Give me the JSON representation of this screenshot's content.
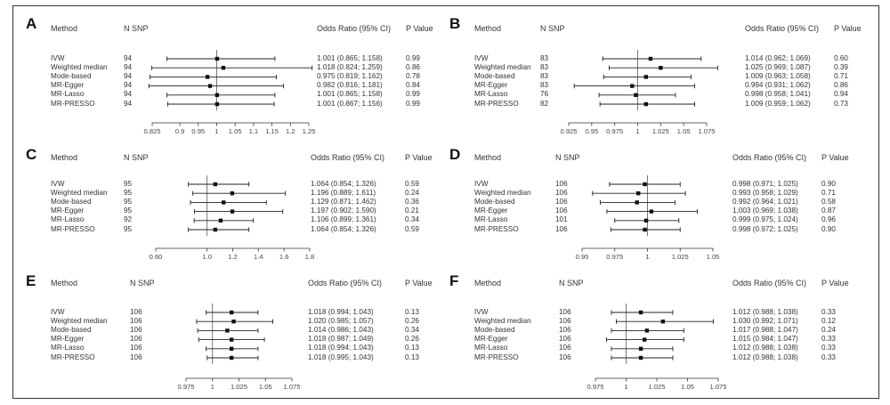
{
  "chart_data": [
    {
      "type": "forest",
      "panel": "A",
      "headers": {
        "method": "Method",
        "nsnp": "N SNP",
        "or": "Odds Ratio (95% CI)",
        "p": "P Value"
      },
      "rows": [
        {
          "method": "IVW",
          "nsnp": "94",
          "or_text": "1.001 (0.865; 1.158)",
          "p": "0.99",
          "or": 1.001,
          "lo": 0.865,
          "hi": 1.158
        },
        {
          "method": "Weighted median",
          "nsnp": "94",
          "or_text": "1.018 (0.824; 1.259)",
          "p": "0.86",
          "or": 1.018,
          "lo": 0.824,
          "hi": 1.259
        },
        {
          "method": "Mode-based",
          "nsnp": "94",
          "or_text": "0.975 (0.819; 1.162)",
          "p": "0.78",
          "or": 0.975,
          "lo": 0.819,
          "hi": 1.162
        },
        {
          "method": "MR-Egger",
          "nsnp": "94",
          "or_text": "0.982 (0.816; 1.181)",
          "p": "0.84",
          "or": 0.982,
          "lo": 0.816,
          "hi": 1.181
        },
        {
          "method": "MR-Lasso",
          "nsnp": "94",
          "or_text": "1.001 (0.865; 1.158)",
          "p": "0.99",
          "or": 1.001,
          "lo": 0.865,
          "hi": 1.158
        },
        {
          "method": "MR-PRESSO",
          "nsnp": "94",
          "or_text": "1.001 (0.867; 1.156)",
          "p": "0.99",
          "or": 1.001,
          "lo": 0.867,
          "hi": 1.156
        }
      ],
      "axis": {
        "min": 0.825,
        "max": 1.25,
        "ticks": [
          0.825,
          0.9,
          0.95,
          1,
          1.05,
          1.1,
          1.15,
          1.2,
          1.25
        ],
        "tick_labels": [
          "0.825",
          "0.9",
          "0.95",
          "1",
          "1.05",
          "1.1",
          "1.15",
          "1.2",
          "1.25"
        ]
      }
    },
    {
      "type": "forest",
      "panel": "B",
      "headers": {
        "method": "Method",
        "nsnp": "N SNP",
        "or": "Odds Ratio (95% CI)",
        "p": "P Value"
      },
      "rows": [
        {
          "method": "IVW",
          "nsnp": "83",
          "or_text": "1.014 (0.962; 1.069)",
          "p": "0.60",
          "or": 1.014,
          "lo": 0.962,
          "hi": 1.069
        },
        {
          "method": "Weighted median",
          "nsnp": "83",
          "or_text": "1.025 (0.969; 1.087)",
          "p": "0.39",
          "or": 1.025,
          "lo": 0.969,
          "hi": 1.087
        },
        {
          "method": "Mode-based",
          "nsnp": "83",
          "or_text": "1.009 (0.963; 1.058)",
          "p": "0.71",
          "or": 1.009,
          "lo": 0.963,
          "hi": 1.058
        },
        {
          "method": "MR-Egger",
          "nsnp": "83",
          "or_text": "0.994 (0.931; 1.062)",
          "p": "0.86",
          "or": 0.994,
          "lo": 0.931,
          "hi": 1.062
        },
        {
          "method": "MR-Lasso",
          "nsnp": "76",
          "or_text": "0.998 (0.958; 1.041)",
          "p": "0.94",
          "or": 0.998,
          "lo": 0.958,
          "hi": 1.041
        },
        {
          "method": "MR-PRESSO",
          "nsnp": "82",
          "or_text": "1.009 (0.959; 1.062)",
          "p": "0.73",
          "or": 1.009,
          "lo": 0.959,
          "hi": 1.062
        }
      ],
      "axis": {
        "min": 0.925,
        "max": 1.075,
        "ticks": [
          0.925,
          0.95,
          0.975,
          1,
          1.025,
          1.05,
          1.075
        ],
        "tick_labels": [
          "0.925",
          "0.95",
          "0.975",
          "1",
          "1.025",
          "1.05",
          "1.075"
        ]
      }
    },
    {
      "type": "forest",
      "panel": "C",
      "headers": {
        "method": "Method",
        "nsnp": "N SNP",
        "or": "Odds Ratio (95% CI)",
        "p": "P Value"
      },
      "rows": [
        {
          "method": "IVW",
          "nsnp": "95",
          "or_text": "1.064 (0.854; 1.326)",
          "p": "0.59",
          "or": 1.064,
          "lo": 0.854,
          "hi": 1.326
        },
        {
          "method": "Weighted median",
          "nsnp": "95",
          "or_text": "1.196 (0.889; 1.611)",
          "p": "0.24",
          "or": 1.196,
          "lo": 0.889,
          "hi": 1.611
        },
        {
          "method": "Mode-based",
          "nsnp": "95",
          "or_text": "1.129 (0.871; 1.462)",
          "p": "0.36",
          "or": 1.129,
          "lo": 0.871,
          "hi": 1.462
        },
        {
          "method": "MR-Egger",
          "nsnp": "95",
          "or_text": "1.197 (0.902; 1.590)",
          "p": "0.21",
          "or": 1.197,
          "lo": 0.902,
          "hi": 1.59
        },
        {
          "method": "MR-Lasso",
          "nsnp": "92",
          "or_text": "1.106 (0.899; 1.361)",
          "p": "0.34",
          "or": 1.106,
          "lo": 0.899,
          "hi": 1.361
        },
        {
          "method": "MR-PRESSO",
          "nsnp": "95",
          "or_text": "1.064 (0.854; 1.326)",
          "p": "0.59",
          "or": 1.064,
          "lo": 0.854,
          "hi": 1.326
        }
      ],
      "axis": {
        "min": 0.6,
        "max": 1.8,
        "ticks": [
          0.6,
          1.0,
          1.2,
          1.4,
          1.6,
          1.8
        ],
        "tick_labels": [
          "0.60",
          "1.0",
          "1.2",
          "1.4",
          "1.6",
          "1.8"
        ]
      }
    },
    {
      "type": "forest",
      "panel": "D",
      "headers": {
        "method": "Method",
        "nsnp": "N SNP",
        "or": "Odds Ratio (95% CI)",
        "p": "P Value"
      },
      "rows": [
        {
          "method": "IVW",
          "nsnp": "106",
          "or_text": "0.998 (0.971; 1.025)",
          "p": "0.90",
          "or": 0.998,
          "lo": 0.971,
          "hi": 1.025
        },
        {
          "method": "Weighted median",
          "nsnp": "106",
          "or_text": "0.993 (0.958; 1.029)",
          "p": "0.71",
          "or": 0.993,
          "lo": 0.958,
          "hi": 1.029
        },
        {
          "method": "Mode-based",
          "nsnp": "106",
          "or_text": "0.992 (0.964; 1.021)",
          "p": "0.58",
          "or": 0.992,
          "lo": 0.964,
          "hi": 1.021
        },
        {
          "method": "MR-Egger",
          "nsnp": "106",
          "or_text": "1.003 (0.969; 1.038)",
          "p": "0.87",
          "or": 1.003,
          "lo": 0.969,
          "hi": 1.038
        },
        {
          "method": "MR-Lasso",
          "nsnp": "101",
          "or_text": "0.999 (0.975; 1.024)",
          "p": "0.96",
          "or": 0.999,
          "lo": 0.975,
          "hi": 1.024
        },
        {
          "method": "MR-PRESSO",
          "nsnp": "106",
          "or_text": "0.998 (0.972; 1.025)",
          "p": "0.90",
          "or": 0.998,
          "lo": 0.972,
          "hi": 1.025
        }
      ],
      "axis": {
        "min": 0.95,
        "max": 1.05,
        "ticks": [
          0.95,
          0.975,
          1,
          1.025,
          1.05
        ],
        "tick_labels": [
          "0.95",
          "0.975",
          "1",
          "1.025",
          "1.05"
        ]
      }
    },
    {
      "type": "forest",
      "panel": "E",
      "headers": {
        "method": "Method",
        "nsnp": "N SNP",
        "or": "Odds Ratio (95% CI)",
        "p": "P Value"
      },
      "rows": [
        {
          "method": "IVW",
          "nsnp": "106",
          "or_text": "1.018 (0.994; 1.043)",
          "p": "0.13",
          "or": 1.018,
          "lo": 0.994,
          "hi": 1.043
        },
        {
          "method": "Weighted median",
          "nsnp": "106",
          "or_text": "1.020 (0.985; 1.057)",
          "p": "0.26",
          "or": 1.02,
          "lo": 0.985,
          "hi": 1.057
        },
        {
          "method": "Mode-based",
          "nsnp": "106",
          "or_text": "1.014 (0.986; 1.043)",
          "p": "0.34",
          "or": 1.014,
          "lo": 0.986,
          "hi": 1.043
        },
        {
          "method": "MR-Egger",
          "nsnp": "106",
          "or_text": "1.018 (0.987; 1.049)",
          "p": "0.26",
          "or": 1.018,
          "lo": 0.987,
          "hi": 1.049
        },
        {
          "method": "MR-Lasso",
          "nsnp": "106",
          "or_text": "1.018 (0.994; 1.043)",
          "p": "0.13",
          "or": 1.018,
          "lo": 0.994,
          "hi": 1.043
        },
        {
          "method": "MR-PRESSO",
          "nsnp": "106",
          "or_text": "1.018 (0.995; 1.043)",
          "p": "0.13",
          "or": 1.018,
          "lo": 0.995,
          "hi": 1.043
        }
      ],
      "axis": {
        "min": 0.975,
        "max": 1.075,
        "ticks": [
          0.975,
          1,
          1.025,
          1.05,
          1.075
        ],
        "tick_labels": [
          "0.975",
          "1",
          "1.025",
          "1.05",
          "1.075"
        ]
      }
    },
    {
      "type": "forest",
      "panel": "F",
      "headers": {
        "method": "Method",
        "nsnp": "N SNP",
        "or": "Odds Ratio (95% CI)",
        "p": "P Value"
      },
      "rows": [
        {
          "method": "IVW",
          "nsnp": "106",
          "or_text": "1.012 (0.988; 1.038)",
          "p": "0.33",
          "or": 1.012,
          "lo": 0.988,
          "hi": 1.038
        },
        {
          "method": "Weighted median",
          "nsnp": "106",
          "or_text": "1.030 (0.992; 1.071)",
          "p": "0.12",
          "or": 1.03,
          "lo": 0.992,
          "hi": 1.071
        },
        {
          "method": "Mode-based",
          "nsnp": "106",
          "or_text": "1.017 (0.988; 1.047)",
          "p": "0.24",
          "or": 1.017,
          "lo": 0.988,
          "hi": 1.047
        },
        {
          "method": "MR-Egger",
          "nsnp": "106",
          "or_text": "1.015 (0.984; 1.047)",
          "p": "0.33",
          "or": 1.015,
          "lo": 0.984,
          "hi": 1.047
        },
        {
          "method": "MR-Lasso",
          "nsnp": "106",
          "or_text": "1.012 (0.988; 1.038)",
          "p": "0.33",
          "or": 1.012,
          "lo": 0.988,
          "hi": 1.038
        },
        {
          "method": "MR-PRESSO",
          "nsnp": "106",
          "or_text": "1.012 (0.988; 1.038)",
          "p": "0.33",
          "or": 1.012,
          "lo": 0.988,
          "hi": 1.038
        }
      ],
      "axis": {
        "min": 0.975,
        "max": 1.075,
        "ticks": [
          0.975,
          1,
          1.025,
          1.05,
          1.075
        ],
        "tick_labels": [
          "0.975",
          "1",
          "1.025",
          "1.05",
          "1.075"
        ]
      }
    }
  ]
}
